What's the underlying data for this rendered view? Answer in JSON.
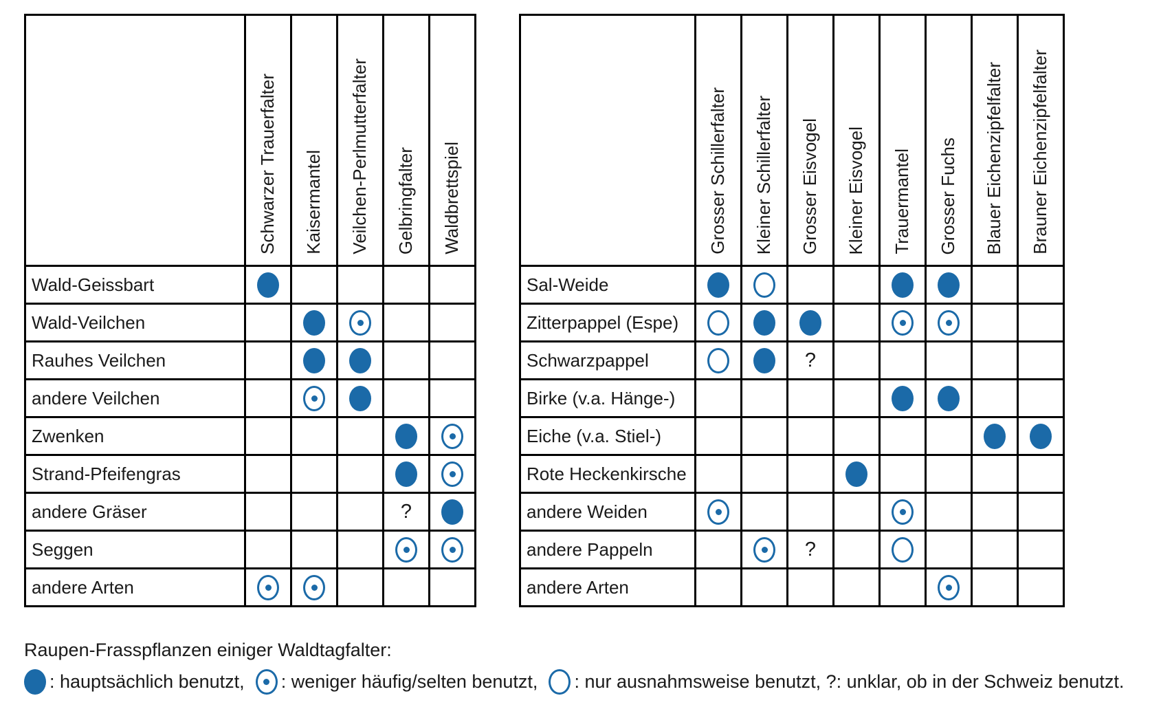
{
  "colors": {
    "symbol_blue": "#1b6aa8",
    "text": "#1a1a1a",
    "border": "#000000",
    "background": "#ffffff"
  },
  "legend": {
    "title": "Raupen-Frasspflanzen einiger Waldtagfalter:",
    "items": [
      {
        "symbol": "filled-circle",
        "text": ": hauptsächlich benutzt,"
      },
      {
        "symbol": "dot-circle",
        "text": ": weniger häufig/selten benutzt,"
      },
      {
        "symbol": "empty-circle",
        "text": ": nur ausnahmsweise benutzt, ?: unklar, ob in der Schweiz benutzt."
      }
    ]
  },
  "chart_data": [
    {
      "type": "table",
      "title": "Raupen-Frasspflanzen einiger Waldtagfalter (linke Tabelle)",
      "cell_encoding": {
        "full": "hauptsächlich benutzt",
        "dot": "weniger häufig/selten benutzt",
        "empty": "nur ausnahmsweise benutzt",
        "?": "unklar, ob in der Schweiz benutzt",
        "": "nicht benutzt / keine Angabe"
      },
      "columns": [
        "Schwarzer Trauerfalter",
        "Kaisermantel",
        "Veilchen-Perlmutterfalter",
        "Gelbringfalter",
        "Waldbrettspiel"
      ],
      "rows": [
        {
          "label": "Wald-Geissbart",
          "cells": [
            "full",
            "",
            "",
            "",
            ""
          ]
        },
        {
          "label": "Wald-Veilchen",
          "cells": [
            "",
            "full",
            "dot",
            "",
            ""
          ]
        },
        {
          "label": "Rauhes Veilchen",
          "cells": [
            "",
            "full",
            "full",
            "",
            ""
          ]
        },
        {
          "label": "andere Veilchen",
          "cells": [
            "",
            "dot",
            "full",
            "",
            ""
          ]
        },
        {
          "label": "Zwenken",
          "cells": [
            "",
            "",
            "",
            "full",
            "dot"
          ]
        },
        {
          "label": "Strand-Pfeifengras",
          "cells": [
            "",
            "",
            "",
            "full",
            "dot"
          ]
        },
        {
          "label": "andere Gräser",
          "cells": [
            "",
            "",
            "",
            "?",
            "full"
          ]
        },
        {
          "label": "Seggen",
          "cells": [
            "",
            "",
            "",
            "dot",
            "dot"
          ]
        },
        {
          "label": "andere Arten",
          "cells": [
            "dot",
            "dot",
            "",
            "",
            ""
          ]
        }
      ]
    },
    {
      "type": "table",
      "title": "Raupen-Frasspflanzen einiger Waldtagfalter (rechte Tabelle)",
      "cell_encoding": {
        "full": "hauptsächlich benutzt",
        "dot": "weniger häufig/selten benutzt",
        "empty": "nur ausnahmsweise benutzt",
        "?": "unklar, ob in der Schweiz benutzt",
        "": "nicht benutzt / keine Angabe"
      },
      "columns": [
        "Grosser Schillerfalter",
        "Kleiner Schillerfalter",
        "Grosser Eisvogel",
        "Kleiner Eisvogel",
        "Trauermantel",
        "Grosser Fuchs",
        "Blauer Eichenzipfelfalter",
        "Brauner Eichenzipfelfalter"
      ],
      "rows": [
        {
          "label": "Sal-Weide",
          "cells": [
            "full",
            "empty",
            "",
            "",
            "full",
            "full",
            "",
            ""
          ]
        },
        {
          "label": "Zitterpappel (Espe)",
          "cells": [
            "empty",
            "full",
            "full",
            "",
            "dot",
            "dot",
            "",
            ""
          ]
        },
        {
          "label": "Schwarzpappel",
          "cells": [
            "empty",
            "full",
            "?",
            "",
            "",
            "",
            "",
            ""
          ]
        },
        {
          "label": "Birke (v.a. Hänge-)",
          "cells": [
            "",
            "",
            "",
            "",
            "full",
            "full",
            "",
            ""
          ]
        },
        {
          "label": "Eiche (v.a. Stiel-)",
          "cells": [
            "",
            "",
            "",
            "",
            "",
            "",
            "full",
            "full"
          ]
        },
        {
          "label": "Rote Heckenkirsche",
          "cells": [
            "",
            "",
            "",
            "full",
            "",
            "",
            "",
            ""
          ]
        },
        {
          "label": "andere Weiden",
          "cells": [
            "dot",
            "",
            "",
            "",
            "dot",
            "",
            "",
            ""
          ]
        },
        {
          "label": "andere Pappeln",
          "cells": [
            "",
            "dot",
            "?",
            "",
            "empty",
            "",
            "",
            ""
          ]
        },
        {
          "label": "andere Arten",
          "cells": [
            "",
            "",
            "",
            "",
            "",
            "dot",
            "",
            ""
          ]
        }
      ]
    }
  ]
}
